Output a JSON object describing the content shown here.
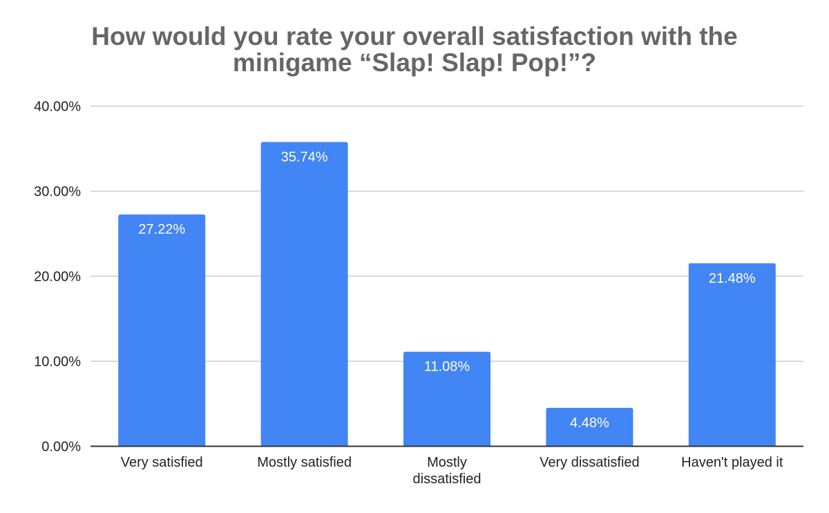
{
  "chart_data": {
    "type": "bar",
    "title": "How would you rate your overall satisfaction with the minigame “Slap! Slap! Pop!”?",
    "title_lines": [
      "How would you rate your overall satisfaction with the",
      "minigame “Slap! Slap! Pop!”?"
    ],
    "xlabel": "",
    "ylabel": "",
    "categories": [
      "Very satisfied",
      "Mostly satisfied",
      "Mostly dissatisfied",
      "Very dissatisfied",
      "Haven't played it"
    ],
    "category_lines": [
      [
        "Very satisfied"
      ],
      [
        "Mostly satisfied"
      ],
      [
        "Mostly",
        "dissatisfied"
      ],
      [
        "Very dissatisfied"
      ],
      [
        "Haven't played it"
      ]
    ],
    "values": [
      27.22,
      35.74,
      11.08,
      4.48,
      21.48
    ],
    "data_labels": [
      "27.22%",
      "35.74%",
      "11.08%",
      "4.48%",
      "21.48%"
    ],
    "ylim": [
      0,
      40
    ],
    "yticks": [
      0,
      10,
      20,
      30,
      40
    ],
    "ytick_labels": [
      "0.00%",
      "10.00%",
      "20.00%",
      "30.00%",
      "40.00%"
    ],
    "grid": true,
    "legend": "none",
    "colors": {
      "bar": "#4285f4",
      "grid": "#cccccc",
      "axis": "#333333",
      "title": "#666666"
    }
  }
}
